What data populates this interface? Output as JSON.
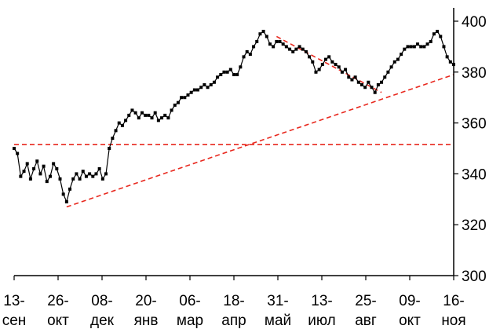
{
  "chart_data": {
    "type": "line",
    "title": "",
    "xlabel": "",
    "ylabel": "",
    "x_axis": {
      "ticks": [
        {
          "line1": "13-",
          "line2": "сен"
        },
        {
          "line1": "26-",
          "line2": "окт"
        },
        {
          "line1": "08-",
          "line2": "дек"
        },
        {
          "line1": "20-",
          "line2": "янв"
        },
        {
          "line1": "06-",
          "line2": "мар"
        },
        {
          "line1": "18-",
          "line2": "апр"
        },
        {
          "line1": "31-",
          "line2": "май"
        },
        {
          "line1": "13-",
          "line2": "июл"
        },
        {
          "line1": "25-",
          "line2": "авг"
        },
        {
          "line1": "09-",
          "line2": "окт"
        },
        {
          "line1": "16-",
          "line2": "ноя"
        }
      ]
    },
    "y_axis": {
      "ylim": [
        300,
        400
      ],
      "ticks": [
        300,
        320,
        340,
        360,
        380,
        400
      ],
      "position": "right"
    },
    "grid": false,
    "legend": "none",
    "colors": {
      "price": "#000000",
      "trendline": "#e8281e"
    },
    "series": [
      {
        "values": [
          350,
          348,
          339,
          341,
          344,
          338,
          342,
          345,
          340,
          343,
          337,
          339,
          344,
          342,
          338,
          332,
          329,
          334,
          338,
          340,
          338,
          341,
          339,
          340,
          339,
          340,
          342,
          338,
          340,
          350,
          354,
          357,
          360,
          359,
          361,
          363,
          365,
          364,
          362,
          364,
          363,
          363,
          362,
          364,
          361,
          362,
          363,
          362,
          365,
          367,
          368,
          370,
          370,
          371,
          372,
          373,
          373,
          374,
          375,
          374,
          375,
          376,
          378,
          379,
          380,
          380,
          381,
          379,
          379,
          382,
          386,
          388,
          387,
          390,
          392,
          395,
          396,
          394,
          391,
          390,
          392,
          392,
          391,
          390,
          389,
          388,
          389,
          390,
          389,
          388,
          386,
          384,
          380,
          381,
          383,
          385,
          386,
          384,
          383,
          382,
          380,
          381,
          378,
          377,
          378,
          376,
          375,
          374,
          376,
          374,
          372,
          375,
          376,
          378,
          380,
          382,
          384,
          385,
          387,
          389,
          390,
          390,
          390,
          391,
          390,
          390,
          391,
          392,
          395,
          396,
          394,
          390,
          386,
          384,
          383
        ]
      }
    ],
    "trendlines": [
      {
        "from": [
          0,
          351.5
        ],
        "to": [
          134,
          351.5
        ]
      },
      {
        "from": [
          16,
          327
        ],
        "to": [
          134,
          379
        ]
      },
      {
        "from": [
          80,
          394
        ],
        "to": [
          112,
          372
        ]
      }
    ]
  }
}
